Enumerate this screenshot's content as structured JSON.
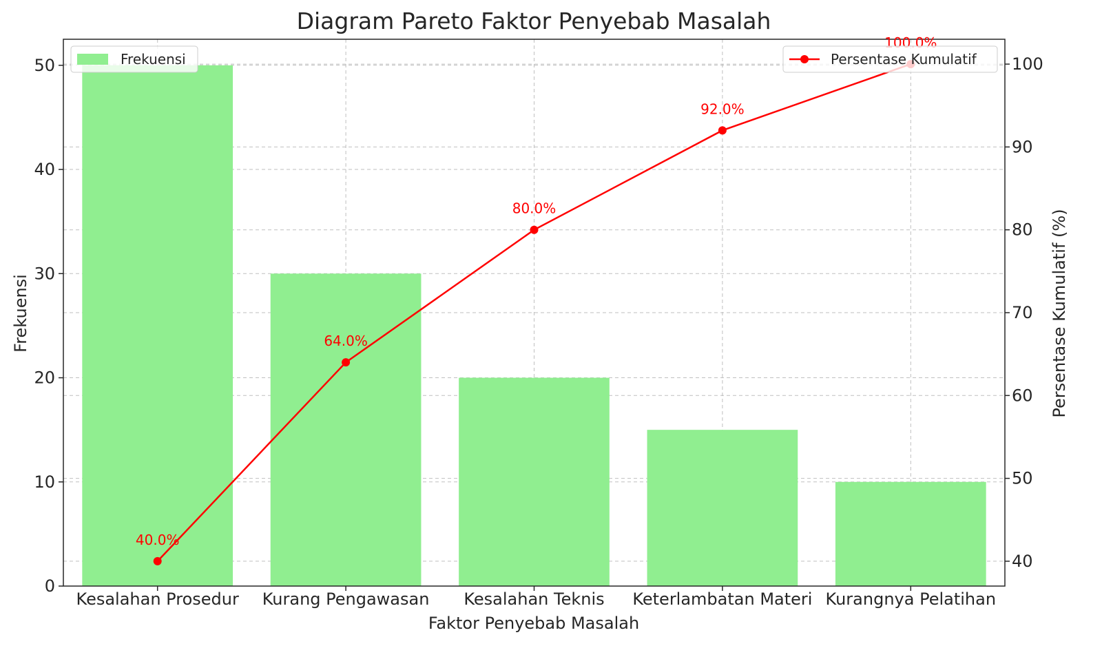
{
  "chart_data": {
    "type": "bar",
    "title": "Diagram Pareto Faktor Penyebab Masalah",
    "xlabel": "Faktor Penyebab Masalah",
    "ylabel": "Frekuensi",
    "y2label": "Persentase Kumulatif (%)",
    "categories": [
      "Kesalahan Prosedur",
      "Kurang Pengawasan",
      "Kesalahan Teknis",
      "Keterlambatan Materi",
      "Kurangnya Pelatihan"
    ],
    "series": [
      {
        "name": "Frekuensi",
        "type": "bar",
        "axis": "left",
        "color": "#90ee90",
        "values": [
          50,
          30,
          20,
          15,
          10
        ]
      },
      {
        "name": "Persentase Kumulatif",
        "type": "line",
        "axis": "right",
        "color": "#ff0000",
        "marker": "circle",
        "values": [
          40.0,
          64.0,
          80.0,
          92.0,
          100.0
        ],
        "data_labels": [
          "40.0%",
          "64.0%",
          "80.0%",
          "92.0%",
          "100.0%"
        ]
      }
    ],
    "ylim": [
      0,
      52.5
    ],
    "y2lim": [
      37,
      103
    ],
    "yticks": [
      0,
      10,
      20,
      30,
      40,
      50
    ],
    "y2ticks": [
      40,
      50,
      60,
      70,
      80,
      90,
      100
    ],
    "grid": true,
    "legends": [
      {
        "entry": "Frekuensi",
        "placement": "top-left"
      },
      {
        "entry": "Persentase Kumulatif",
        "placement": "top-right"
      }
    ]
  }
}
